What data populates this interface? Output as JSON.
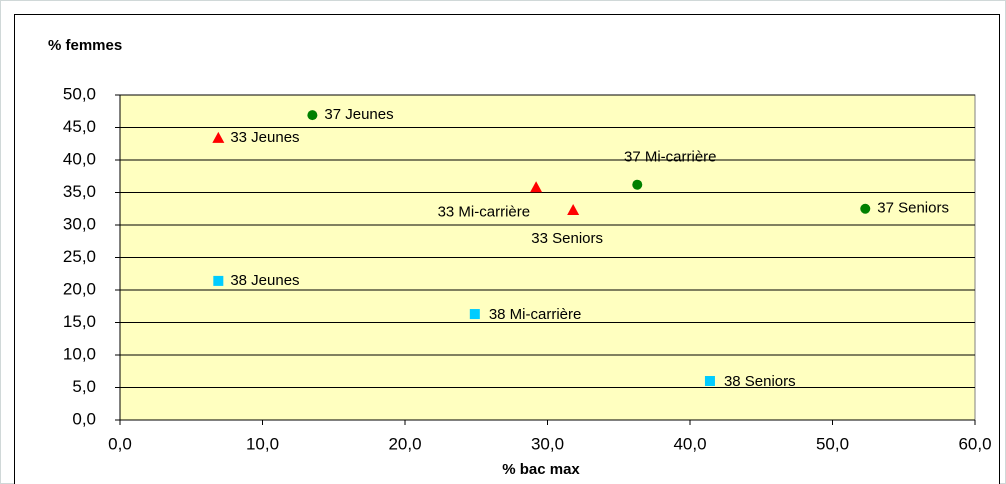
{
  "chart_data": {
    "type": "scatter",
    "y_label": "% femmes",
    "x_label": "% bac max",
    "xlim": [
      0,
      60
    ],
    "ylim": [
      0,
      50
    ],
    "xticks": [
      {
        "value": 0,
        "label": "0,0"
      },
      {
        "value": 10,
        "label": "10,0"
      },
      {
        "value": 20,
        "label": "20,0"
      },
      {
        "value": 30,
        "label": "30,0"
      },
      {
        "value": 40,
        "label": "40,0"
      },
      {
        "value": 50,
        "label": "50,0"
      },
      {
        "value": 60,
        "label": "60,0"
      }
    ],
    "yticks": [
      {
        "value": 0,
        "label": "0,0"
      },
      {
        "value": 5,
        "label": "5,0"
      },
      {
        "value": 10,
        "label": "10,0"
      },
      {
        "value": 15,
        "label": "15,0"
      },
      {
        "value": 20,
        "label": "20,0"
      },
      {
        "value": 25,
        "label": "25,0"
      },
      {
        "value": 30,
        "label": "30,0"
      },
      {
        "value": 35,
        "label": "35,0"
      },
      {
        "value": 40,
        "label": "40,0"
      },
      {
        "value": 45,
        "label": "45,0"
      },
      {
        "value": 50,
        "label": "50,0"
      }
    ],
    "grid": true,
    "series": [
      {
        "color": "#ff0000",
        "marker": "triangle",
        "x": [
          6.9,
          29.2,
          31.8
        ],
        "values": [
          43.4,
          35.8,
          32.3
        ],
        "labels": [
          "33 Jeunes",
          "33 Mi-carrière",
          "33 Seniors"
        ]
      },
      {
        "color": "#008000",
        "marker": "circle",
        "x": [
          13.5,
          36.3,
          52.3
        ],
        "values": [
          46.9,
          36.2,
          32.5
        ],
        "labels": [
          "37 Jeunes",
          "37 Mi-carrière",
          "37 Seniors"
        ]
      },
      {
        "color": "#00ccff",
        "marker": "square",
        "x": [
          6.9,
          24.9,
          41.4
        ],
        "values": [
          21.4,
          16.3,
          6.0
        ],
        "labels": [
          "38 Jeunes",
          "38 Mi-carrière",
          "38 Seniors"
        ]
      }
    ]
  }
}
